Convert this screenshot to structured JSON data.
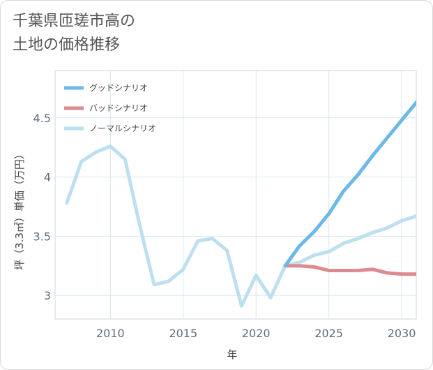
{
  "page_title": "千葉県匝瑳市高の\n土地の価格推移",
  "chart_data": {
    "type": "line",
    "title": "千葉県匝瑳市高の土地の価格推移",
    "xlabel": "年",
    "ylabel": "坪（3.3㎡）単価（万円）",
    "xlim": [
      2006.2,
      2031
    ],
    "ylim": [
      2.8,
      4.9
    ],
    "x_ticks": [
      2010,
      2015,
      2020,
      2025,
      2030
    ],
    "y_ticks": [
      3,
      3.5,
      4,
      4.5
    ],
    "x_tick_labels": [
      "2010",
      "2015",
      "2020",
      "2025",
      "2030"
    ],
    "y_tick_labels": [
      "3",
      "3.5",
      "4",
      "4.5"
    ],
    "grid": true,
    "legend_position": "top-left",
    "series": [
      {
        "name": "グッドシナリオ",
        "color": "#6cb8e8",
        "x": [
          2022,
          2023,
          2024,
          2025,
          2026,
          2027,
          2028,
          2029,
          2030,
          2031
        ],
        "values": [
          3.25,
          3.42,
          3.54,
          3.69,
          3.88,
          4.02,
          4.18,
          4.33,
          4.48,
          4.63
        ]
      },
      {
        "name": "バッドシナリオ",
        "color": "#dd8a90",
        "x": [
          2022,
          2023,
          2024,
          2025,
          2026,
          2027,
          2028,
          2029,
          2030,
          2031
        ],
        "values": [
          3.25,
          3.25,
          3.24,
          3.21,
          3.21,
          3.21,
          3.22,
          3.19,
          3.18,
          3.18
        ]
      },
      {
        "name": "ノーマルシナリオ",
        "color": "#bde0ee",
        "x": [
          2007,
          2008,
          2009,
          2010,
          2011,
          2012,
          2013,
          2014,
          2015,
          2016,
          2017,
          2018,
          2019,
          2020,
          2021,
          2022,
          2023,
          2024,
          2025,
          2026,
          2027,
          2028,
          2029,
          2030,
          2031
        ],
        "values": [
          3.78,
          4.13,
          4.21,
          4.26,
          4.15,
          3.6,
          3.09,
          3.12,
          3.22,
          3.46,
          3.48,
          3.38,
          2.91,
          3.17,
          2.98,
          3.25,
          3.28,
          3.34,
          3.37,
          3.44,
          3.48,
          3.53,
          3.57,
          3.63,
          3.67
        ]
      }
    ]
  }
}
